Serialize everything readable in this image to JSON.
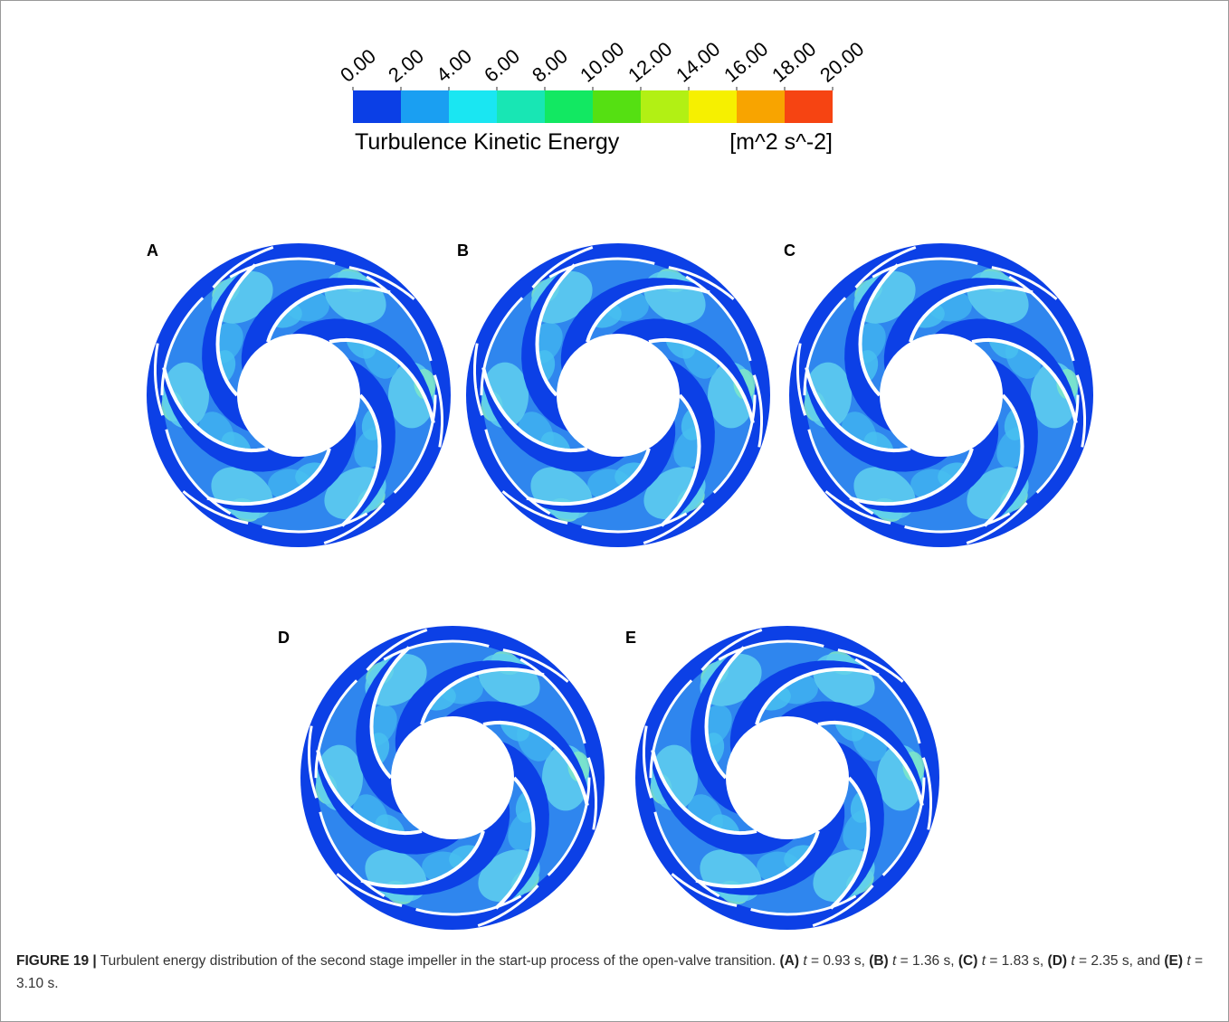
{
  "colorbar": {
    "ticks": [
      {
        "value": 0,
        "label": "0.00"
      },
      {
        "value": 2,
        "label": "2.00"
      },
      {
        "value": 4,
        "label": "4.00"
      },
      {
        "value": 6,
        "label": "6.00"
      },
      {
        "value": 8,
        "label": "8.00"
      },
      {
        "value": 10,
        "label": "10.00"
      },
      {
        "value": 12,
        "label": "12.00"
      },
      {
        "value": 14,
        "label": "14.00"
      },
      {
        "value": 16,
        "label": "16.00"
      },
      {
        "value": 18,
        "label": "18.00"
      },
      {
        "value": 20,
        "label": "20.00"
      }
    ],
    "colors": [
      "#0b3fe6",
      "#1a9ff2",
      "#1ae6f2",
      "#18e6b4",
      "#12e862",
      "#55e012",
      "#b2f014",
      "#f6f000",
      "#f8a400",
      "#f64412"
    ],
    "title": "Turbulence Kinetic Energy",
    "unit": "[m^2 s^-2]"
  },
  "panels": [
    "A",
    "B",
    "C",
    "D",
    "E"
  ],
  "caption": {
    "label": "FIGURE 19 |",
    "text": "Turbulent energy distribution of the second stage impeller in the start-up process of the open-valve transition.",
    "items": [
      {
        "label": "(A)",
        "var": "t",
        "rest": "= 0.93 s,"
      },
      {
        "label": "(B)",
        "var": "t",
        "rest": "= 1.36 s,"
      },
      {
        "label": "(C)",
        "var": "t",
        "rest": "= 1.83 s,"
      },
      {
        "label": "(D)",
        "var": "t",
        "rest": "= 2.35 s,"
      },
      {
        "prefix": "and",
        "label": "(E)",
        "var": "t",
        "rest": "= 3.10 s."
      }
    ]
  }
}
